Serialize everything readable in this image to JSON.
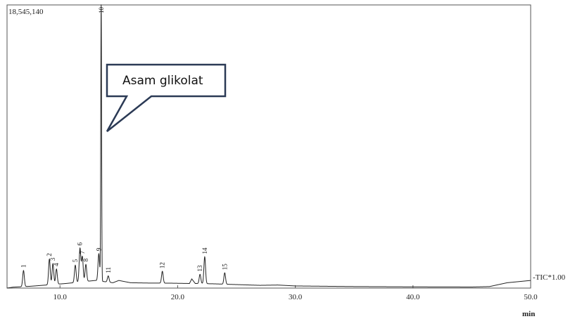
{
  "chart_data": {
    "type": "line",
    "ymax_label": "18,545,140",
    "x_unit_label": "min",
    "series_label": "-TIC*1.00",
    "xlim": [
      5.5,
      50.0
    ],
    "ylim": [
      0,
      18545140
    ],
    "x_ticks": [
      {
        "value": 10.0,
        "label": "10.0"
      },
      {
        "value": 20.0,
        "label": "20.0"
      },
      {
        "value": 30.0,
        "label": "30.0"
      },
      {
        "value": 40.0,
        "label": "40.0"
      },
      {
        "value": 50.0,
        "label": "50.0"
      }
    ],
    "peaks": [
      {
        "label": "1",
        "x": 6.9,
        "y": 1150000
      },
      {
        "label": "2",
        "x": 9.1,
        "y": 1900000
      },
      {
        "label": "3",
        "x": 9.4,
        "y": 1600000
      },
      {
        "label": "4",
        "x": 9.7,
        "y": 1250000
      },
      {
        "label": "5",
        "x": 11.3,
        "y": 1500000
      },
      {
        "label": "6",
        "x": 11.7,
        "y": 2600000
      },
      {
        "label": "7",
        "x": 11.9,
        "y": 2050000
      },
      {
        "label": "8",
        "x": 12.2,
        "y": 1550000
      },
      {
        "label": "9",
        "x": 13.3,
        "y": 2250000
      },
      {
        "label": "10",
        "x": 13.5,
        "y": 18545140
      },
      {
        "label": "11",
        "x": 14.1,
        "y": 800000
      },
      {
        "label": "12",
        "x": 18.7,
        "y": 1100000
      },
      {
        "label": "13",
        "x": 21.9,
        "y": 900000
      },
      {
        "label": "14",
        "x": 22.3,
        "y": 2050000
      },
      {
        "label": "15",
        "x": 24.0,
        "y": 1000000
      }
    ],
    "baseline": [
      [
        5.5,
        0
      ],
      [
        6.0,
        60000
      ],
      [
        6.5,
        80000
      ],
      [
        7.5,
        120000
      ],
      [
        8.5,
        180000
      ],
      [
        10.5,
        300000
      ],
      [
        13.0,
        500000
      ],
      [
        14.5,
        350000
      ],
      [
        15.0,
        500000
      ],
      [
        16.0,
        350000
      ],
      [
        17.5,
        330000
      ],
      [
        19.5,
        320000
      ],
      [
        21.0,
        300000
      ],
      [
        21.2,
        600000
      ],
      [
        21.5,
        300000
      ],
      [
        23.0,
        280000
      ],
      [
        25.0,
        230000
      ],
      [
        27.0,
        180000
      ],
      [
        28.5,
        200000
      ],
      [
        30.0,
        140000
      ],
      [
        35.0,
        100000
      ],
      [
        40.0,
        80000
      ],
      [
        45.0,
        70000
      ],
      [
        46.5,
        100000
      ],
      [
        48.0,
        350000
      ],
      [
        50.0,
        500000
      ]
    ]
  },
  "annotation": {
    "label": "Asam glikolat",
    "points_to_peak": "10"
  }
}
